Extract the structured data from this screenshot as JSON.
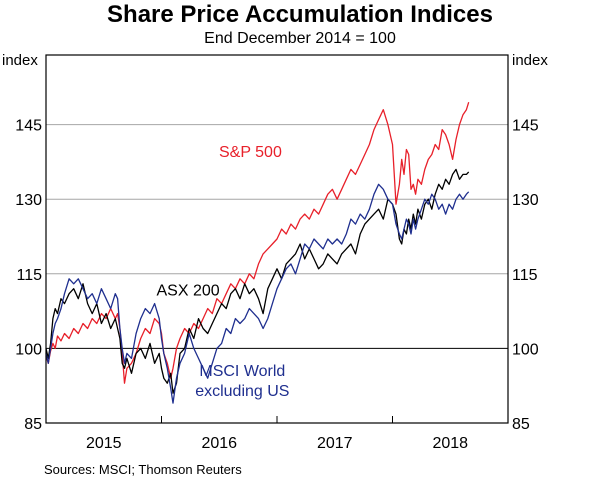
{
  "chart_data": {
    "type": "line",
    "title": "Share Price Accumulation Indices",
    "subtitle": "End December 2014 = 100",
    "ylabel_left": "index",
    "ylabel_right": "index",
    "xlabel": "",
    "ylim": [
      85,
      159
    ],
    "yticks": [
      85,
      100,
      115,
      130,
      145
    ],
    "xlim": [
      2015.0,
      2019.0
    ],
    "xtick_labels": [
      {
        "label": "2015",
        "x": 2015.5
      },
      {
        "label": "2016",
        "x": 2016.5
      },
      {
        "label": "2017",
        "x": 2017.5
      },
      {
        "label": "2018",
        "x": 2018.5
      }
    ],
    "year_boundaries": [
      2016,
      2017,
      2018
    ],
    "reference_line": 100,
    "grid": true,
    "source": "Sources: MSCI; Thomson Reuters",
    "series": [
      {
        "name": "S&P 500",
        "label": "S&P 500",
        "color": "#e8202a",
        "label_pos": {
          "x": 2016.77,
          "y": 138.5
        },
        "x": [
          2015.0,
          2015.02,
          2015.04,
          2015.06,
          2015.08,
          2015.1,
          2015.13,
          2015.16,
          2015.2,
          2015.24,
          2015.28,
          2015.32,
          2015.36,
          2015.4,
          2015.44,
          2015.48,
          2015.52,
          2015.56,
          2015.6,
          2015.62,
          2015.64,
          2015.66,
          2015.68,
          2015.7,
          2015.74,
          2015.78,
          2015.82,
          2015.86,
          2015.9,
          2015.94,
          2015.98,
          2016.0,
          2016.02,
          2016.05,
          2016.08,
          2016.1,
          2016.13,
          2016.16,
          2016.2,
          2016.24,
          2016.28,
          2016.32,
          2016.36,
          2016.4,
          2016.44,
          2016.48,
          2016.52,
          2016.56,
          2016.6,
          2016.64,
          2016.68,
          2016.72,
          2016.76,
          2016.8,
          2016.84,
          2016.88,
          2016.92,
          2016.96,
          2017.0,
          2017.04,
          2017.08,
          2017.12,
          2017.16,
          2017.2,
          2017.24,
          2017.28,
          2017.32,
          2017.36,
          2017.4,
          2017.44,
          2017.48,
          2017.52,
          2017.56,
          2017.6,
          2017.64,
          2017.68,
          2017.72,
          2017.76,
          2017.8,
          2017.84,
          2017.88,
          2017.92,
          2017.96,
          2018.0,
          2018.03,
          2018.06,
          2018.08,
          2018.1,
          2018.12,
          2018.14,
          2018.16,
          2018.18,
          2018.2,
          2018.22,
          2018.25,
          2018.28,
          2018.31,
          2018.34,
          2018.37,
          2018.4,
          2018.43,
          2018.46,
          2018.49,
          2018.52,
          2018.55,
          2018.58,
          2018.61,
          2018.64,
          2018.66
        ],
        "values": [
          98.5,
          97,
          99.5,
          101,
          100,
          102.5,
          101.5,
          103,
          102,
          104,
          103,
          105,
          104,
          106,
          105,
          107,
          106,
          108,
          106,
          107,
          104,
          99,
          93,
          96,
          97,
          99,
          102,
          104,
          103,
          106,
          105,
          103,
          99,
          97,
          94,
          96,
          100,
          102,
          104,
          103,
          105,
          104,
          106,
          108,
          107,
          110,
          109,
          111,
          113,
          112,
          114,
          113,
          115,
          114,
          117,
          119,
          120,
          121,
          122,
          124,
          123,
          125,
          124,
          126,
          127,
          126,
          128,
          127,
          129,
          131,
          132,
          130,
          132,
          134,
          136,
          135,
          137,
          139,
          141,
          144,
          146,
          148,
          145,
          141,
          129,
          133,
          138,
          135,
          140,
          139,
          132,
          133,
          131,
          134,
          133,
          136,
          138,
          139,
          141,
          140,
          144,
          143,
          141,
          138,
          142,
          145,
          147,
          148,
          149.5
        ]
      },
      {
        "name": "ASX 200",
        "label": "ASX 200",
        "color": "#000000",
        "label_pos": {
          "x": 2016.23,
          "y": 110.6
        },
        "x": [
          2015.0,
          2015.02,
          2015.04,
          2015.06,
          2015.08,
          2015.1,
          2015.13,
          2015.16,
          2015.2,
          2015.24,
          2015.28,
          2015.32,
          2015.36,
          2015.4,
          2015.44,
          2015.48,
          2015.52,
          2015.56,
          2015.6,
          2015.62,
          2015.64,
          2015.66,
          2015.68,
          2015.7,
          2015.74,
          2015.78,
          2015.82,
          2015.86,
          2015.9,
          2015.94,
          2015.98,
          2016.0,
          2016.02,
          2016.05,
          2016.08,
          2016.1,
          2016.13,
          2016.16,
          2016.2,
          2016.24,
          2016.28,
          2016.32,
          2016.36,
          2016.4,
          2016.44,
          2016.48,
          2016.52,
          2016.56,
          2016.6,
          2016.64,
          2016.68,
          2016.72,
          2016.76,
          2016.8,
          2016.84,
          2016.88,
          2016.92,
          2016.96,
          2017.0,
          2017.04,
          2017.08,
          2017.12,
          2017.16,
          2017.2,
          2017.24,
          2017.28,
          2017.32,
          2017.36,
          2017.4,
          2017.44,
          2017.48,
          2017.52,
          2017.56,
          2017.6,
          2017.64,
          2017.68,
          2017.72,
          2017.76,
          2017.8,
          2017.84,
          2017.88,
          2017.92,
          2017.96,
          2018.0,
          2018.03,
          2018.06,
          2018.08,
          2018.1,
          2018.12,
          2018.14,
          2018.16,
          2018.18,
          2018.2,
          2018.22,
          2018.25,
          2018.28,
          2018.31,
          2018.34,
          2018.37,
          2018.4,
          2018.43,
          2018.46,
          2018.49,
          2018.52,
          2018.55,
          2018.58,
          2018.61,
          2018.64,
          2018.66
        ],
        "values": [
          100,
          98,
          101,
          106,
          108,
          107,
          110,
          109,
          111,
          112,
          110,
          113,
          109,
          107,
          109,
          105,
          107,
          104,
          106,
          104,
          102,
          97,
          96,
          98,
          95,
          99,
          100,
          98,
          101,
          97,
          99,
          96,
          94,
          93,
          95,
          91,
          93,
          99,
          100,
          104,
          102,
          106,
          104,
          103,
          105,
          107,
          109,
          108,
          111,
          112,
          110,
          113,
          111,
          112,
          110,
          107,
          112,
          114,
          116,
          114,
          117,
          118,
          119,
          121,
          118,
          120,
          118,
          116,
          117,
          119,
          118,
          117,
          119,
          120,
          121,
          119,
          123,
          125,
          126,
          127,
          128,
          126,
          130,
          129,
          127,
          122,
          121,
          124,
          123,
          126,
          124,
          127,
          125,
          128,
          126,
          129,
          130,
          128,
          131,
          133,
          132,
          134,
          133,
          135,
          136,
          134,
          135,
          135,
          135.5
        ]
      },
      {
        "name": "MSCI World excluding US",
        "label": "MSCI World\nexcluding US",
        "label_lines": [
          "MSCI World",
          "excluding US"
        ],
        "color": "#1f2f8f",
        "label_pos": {
          "x": 2016.7,
          "y": 94.5
        },
        "x": [
          2015.0,
          2015.02,
          2015.04,
          2015.06,
          2015.08,
          2015.1,
          2015.13,
          2015.16,
          2015.2,
          2015.24,
          2015.28,
          2015.32,
          2015.36,
          2015.4,
          2015.44,
          2015.48,
          2015.52,
          2015.56,
          2015.6,
          2015.62,
          2015.64,
          2015.66,
          2015.68,
          2015.7,
          2015.74,
          2015.78,
          2015.82,
          2015.86,
          2015.9,
          2015.94,
          2015.98,
          2016.0,
          2016.02,
          2016.05,
          2016.08,
          2016.1,
          2016.13,
          2016.16,
          2016.2,
          2016.24,
          2016.28,
          2016.32,
          2016.36,
          2016.4,
          2016.44,
          2016.48,
          2016.52,
          2016.56,
          2016.6,
          2016.64,
          2016.68,
          2016.72,
          2016.76,
          2016.8,
          2016.84,
          2016.88,
          2016.92,
          2016.96,
          2017.0,
          2017.04,
          2017.08,
          2017.12,
          2017.16,
          2017.2,
          2017.24,
          2017.28,
          2017.32,
          2017.36,
          2017.4,
          2017.44,
          2017.48,
          2017.52,
          2017.56,
          2017.6,
          2017.64,
          2017.68,
          2017.72,
          2017.76,
          2017.8,
          2017.84,
          2017.88,
          2017.92,
          2017.96,
          2018.0,
          2018.03,
          2018.06,
          2018.08,
          2018.1,
          2018.12,
          2018.14,
          2018.16,
          2018.18,
          2018.2,
          2018.22,
          2018.25,
          2018.28,
          2018.31,
          2018.34,
          2018.37,
          2018.4,
          2018.43,
          2018.46,
          2018.49,
          2018.52,
          2018.55,
          2018.58,
          2018.61,
          2018.64,
          2018.66
        ],
        "values": [
          99,
          97,
          100,
          103,
          105,
          106,
          108,
          111,
          114,
          113,
          114,
          112,
          110,
          111,
          109,
          112,
          110,
          108,
          111,
          110,
          104,
          100,
          97,
          99,
          98,
          103,
          106,
          108,
          107,
          109,
          106,
          102,
          99,
          96,
          92,
          89,
          94,
          97,
          99,
          103,
          100,
          98,
          96,
          94,
          97,
          100,
          101,
          104,
          103,
          106,
          105,
          106,
          108,
          107,
          106,
          104,
          106,
          109,
          112,
          114,
          116,
          117,
          115,
          118,
          121,
          120,
          122,
          121,
          120,
          122,
          121,
          122,
          121,
          123,
          126,
          125,
          127,
          126,
          128,
          131,
          133,
          132,
          130,
          129,
          125,
          123,
          122,
          124,
          126,
          125,
          123,
          126,
          124,
          126,
          128,
          130,
          129,
          131,
          130,
          128,
          129,
          127,
          129,
          128,
          130,
          131,
          130,
          131,
          131.5
        ]
      }
    ]
  }
}
